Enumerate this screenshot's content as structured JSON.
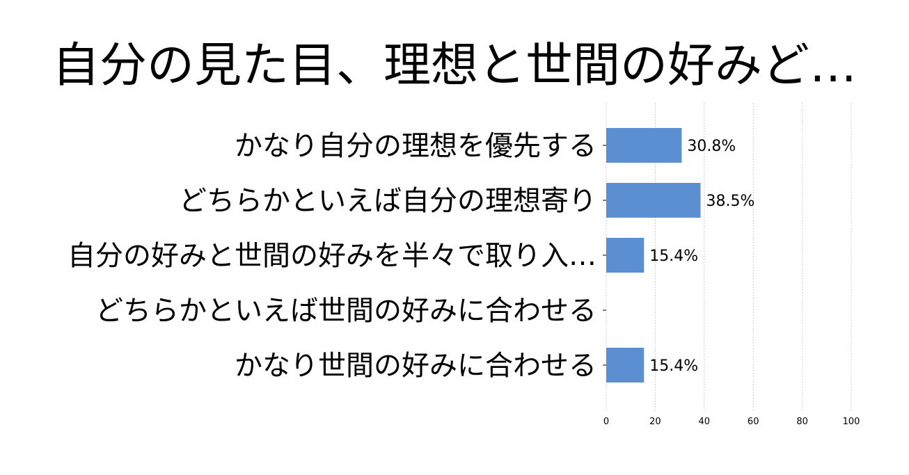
{
  "chart_data": {
    "type": "bar",
    "orientation": "horizontal",
    "title": "自分の見た目、理想と世間の好みど…",
    "categories": [
      "かなり自分の理想を優先する",
      "どちらかといえば自分の理想寄り",
      "自分の好みと世間の好みを半々で取り入…",
      "どちらかといえば世間の好みに合わせる",
      "かなり世間の好みに合わせる"
    ],
    "values": [
      30.8,
      38.5,
      15.4,
      0,
      15.4
    ],
    "value_labels": [
      "30.8%",
      "38.5%",
      "15.4%",
      "",
      "15.4%"
    ],
    "xlim": [
      0,
      100
    ],
    "xticks": [
      "0",
      "20",
      "40",
      "60",
      "80",
      "100"
    ],
    "xlabel": "",
    "ylabel": "",
    "grid": "vertical-dashed",
    "bar_color": "#5b8fd2"
  }
}
